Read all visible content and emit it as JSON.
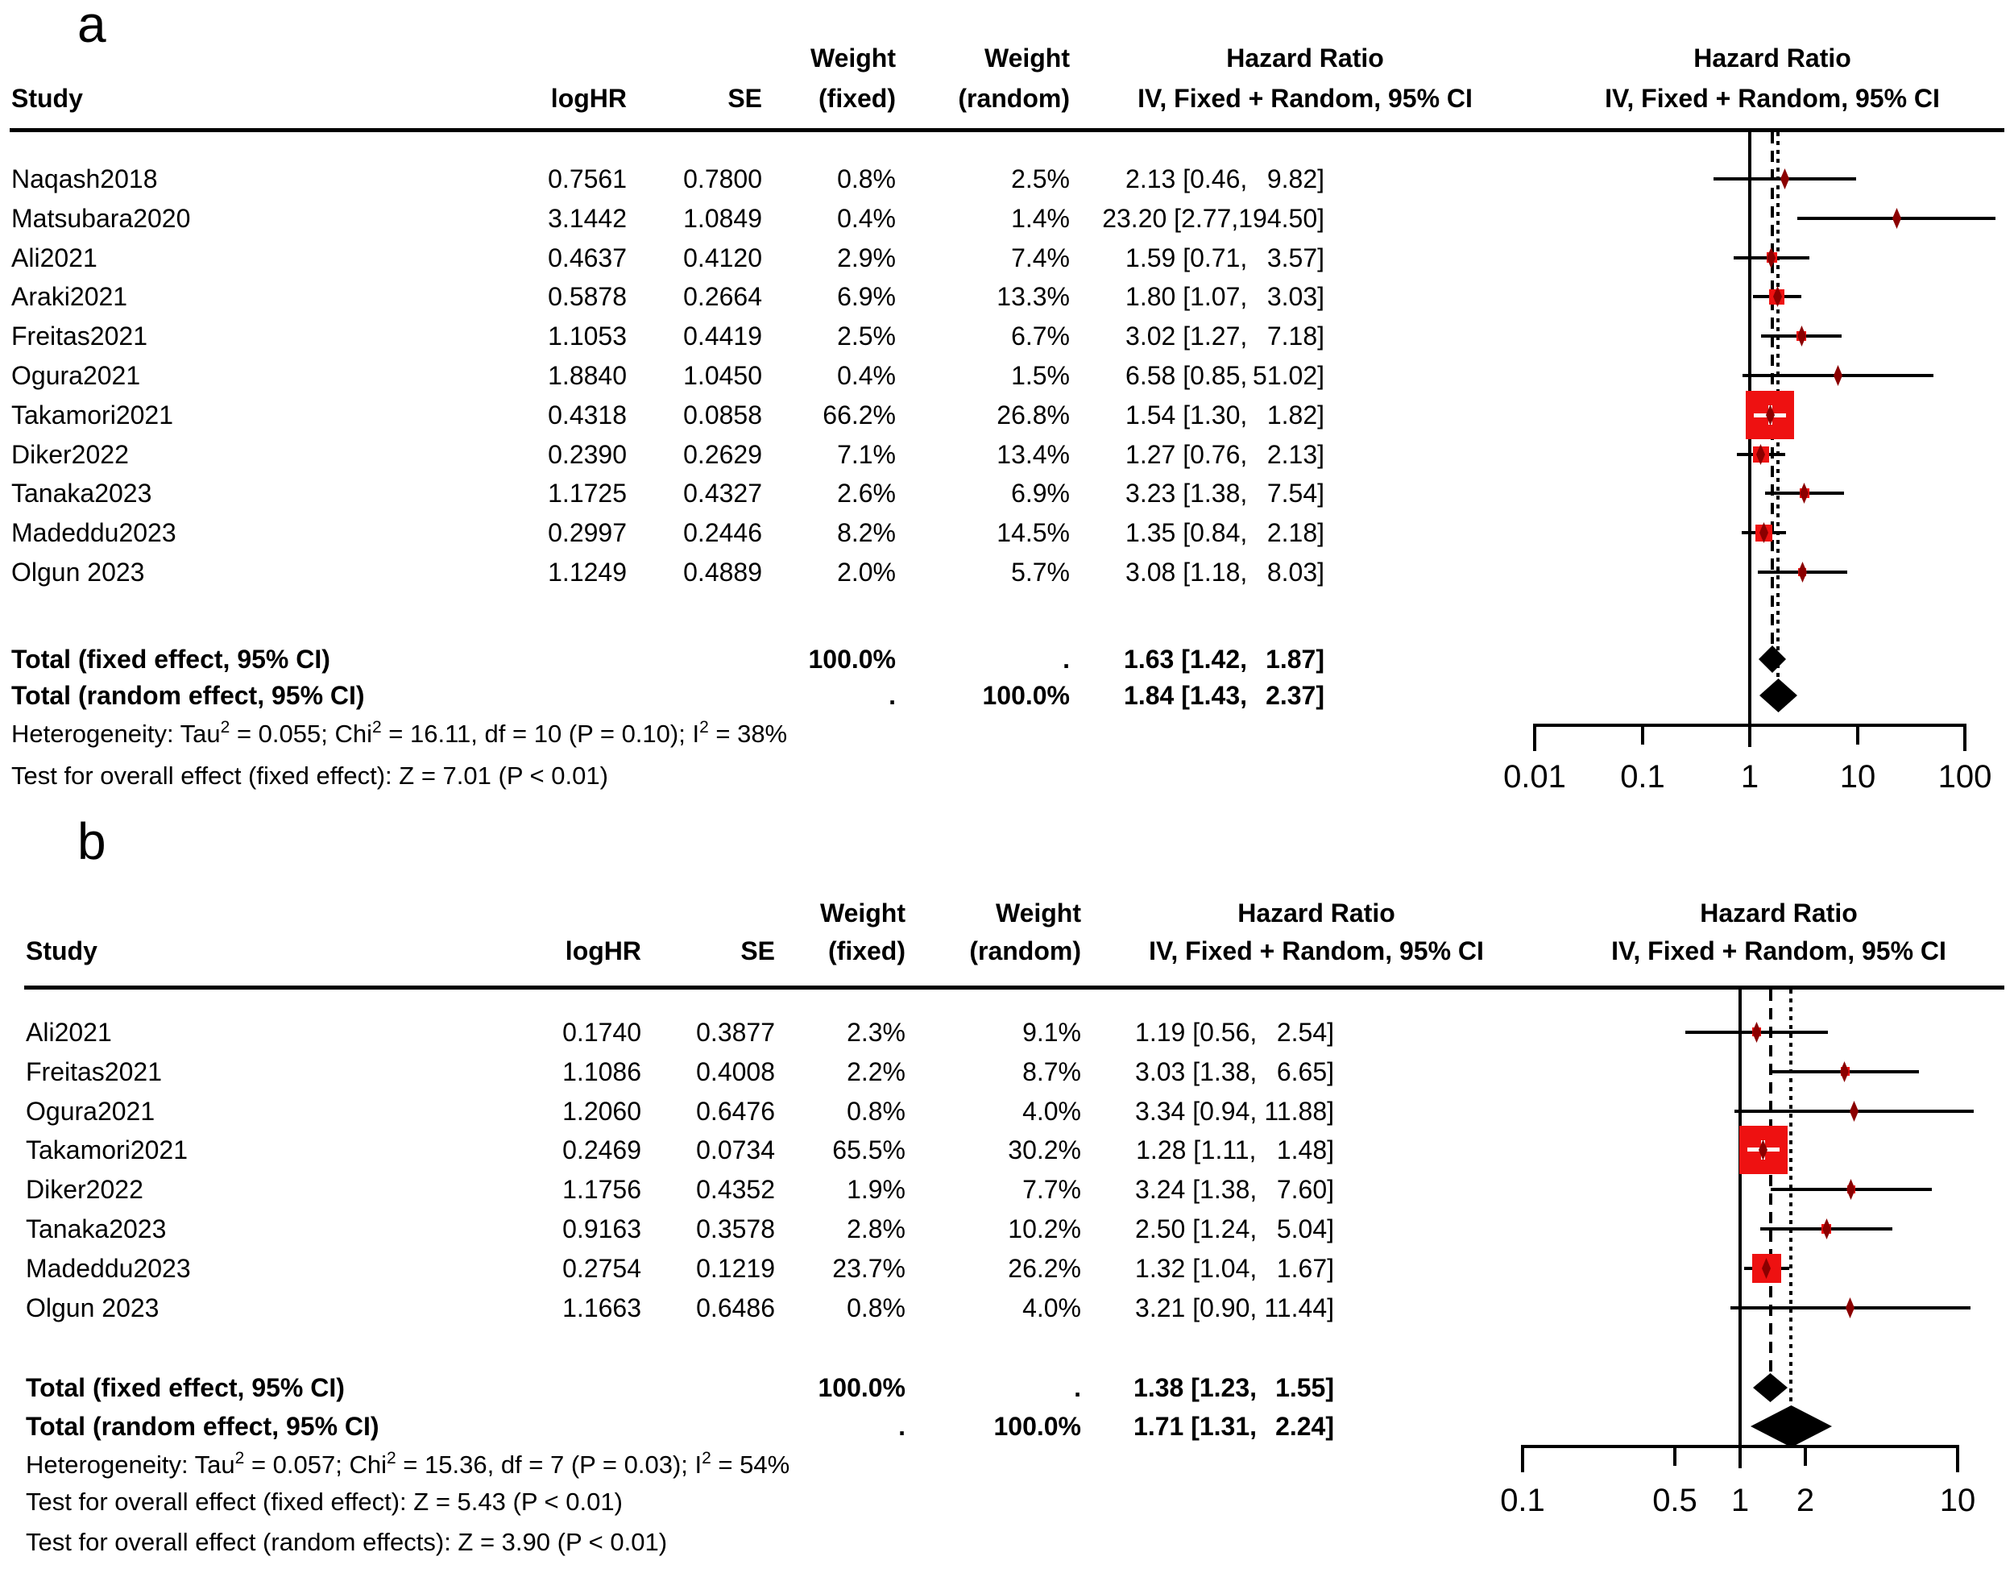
{
  "colors": {
    "background": "#ffffff",
    "text": "#000000",
    "line": "#000000",
    "weight_square": "#ee1111",
    "point_marker": "#8b0000",
    "pooled_diamond": "#000000"
  },
  "chart_data": [
    {
      "type": "forest",
      "panel_label": "a",
      "columns": {
        "study": "Study",
        "logHR": "logHR",
        "SE": "SE",
        "weight_fixed_top": "Weight",
        "weight_fixed_bottom": "(fixed)",
        "weight_random_top": "Weight",
        "weight_random_bottom": "(random)",
        "hr_text_top": "Hazard Ratio",
        "hr_text_bottom": "IV, Fixed + Random, 95% CI",
        "hr_plot_top": "Hazard Ratio",
        "hr_plot_bottom": "IV, Fixed + Random, 95% CI"
      },
      "studies": [
        {
          "study": "Naqash2018",
          "logHR": "0.7561",
          "SE": "0.7800",
          "weight_fixed": "0.8%",
          "weight_random": "2.5%",
          "weight_fixed_value": 0.8,
          "est": 2.13,
          "lo": 0.46,
          "hi": 9.82,
          "est_text": "2.13",
          "lo_text": "0.46",
          "hi_text": "9.82"
        },
        {
          "study": "Matsubara2020",
          "logHR": "3.1442",
          "SE": "1.0849",
          "weight_fixed": "0.4%",
          "weight_random": "1.4%",
          "weight_fixed_value": 0.4,
          "est": 23.2,
          "lo": 2.77,
          "hi": 194.5,
          "est_text": "23.20",
          "lo_text": "2.77",
          "hi_text": "194.50"
        },
        {
          "study": "Ali2021",
          "logHR": "0.4637",
          "SE": "0.4120",
          "weight_fixed": "2.9%",
          "weight_random": "7.4%",
          "weight_fixed_value": 2.9,
          "est": 1.59,
          "lo": 0.71,
          "hi": 3.57,
          "est_text": "1.59",
          "lo_text": "0.71",
          "hi_text": "3.57"
        },
        {
          "study": "Araki2021",
          "logHR": "0.5878",
          "SE": "0.2664",
          "weight_fixed": "6.9%",
          "weight_random": "13.3%",
          "weight_fixed_value": 6.9,
          "est": 1.8,
          "lo": 1.07,
          "hi": 3.03,
          "est_text": "1.80",
          "lo_text": "1.07",
          "hi_text": "3.03"
        },
        {
          "study": "Freitas2021",
          "logHR": "1.1053",
          "SE": "0.4419",
          "weight_fixed": "2.5%",
          "weight_random": "6.7%",
          "weight_fixed_value": 2.5,
          "est": 3.02,
          "lo": 1.27,
          "hi": 7.18,
          "est_text": "3.02",
          "lo_text": "1.27",
          "hi_text": "7.18"
        },
        {
          "study": "Ogura2021",
          "logHR": "1.8840",
          "SE": "1.0450",
          "weight_fixed": "0.4%",
          "weight_random": "1.5%",
          "weight_fixed_value": 0.4,
          "est": 6.58,
          "lo": 0.85,
          "hi": 51.02,
          "est_text": "6.58",
          "lo_text": "0.85",
          "hi_text": "51.02"
        },
        {
          "study": "Takamori2021",
          "logHR": "0.4318",
          "SE": "0.0858",
          "weight_fixed": "66.2%",
          "weight_random": "26.8%",
          "weight_fixed_value": 66.2,
          "est": 1.54,
          "lo": 1.3,
          "hi": 1.82,
          "est_text": "1.54",
          "lo_text": "1.30",
          "hi_text": "1.82"
        },
        {
          "study": "Diker2022",
          "logHR": "0.2390",
          "SE": "0.2629",
          "weight_fixed": "7.1%",
          "weight_random": "13.4%",
          "weight_fixed_value": 7.1,
          "est": 1.27,
          "lo": 0.76,
          "hi": 2.13,
          "est_text": "1.27",
          "lo_text": "0.76",
          "hi_text": "2.13"
        },
        {
          "study": "Tanaka2023",
          "logHR": "1.1725",
          "SE": "0.4327",
          "weight_fixed": "2.6%",
          "weight_random": "6.9%",
          "weight_fixed_value": 2.6,
          "est": 3.23,
          "lo": 1.38,
          "hi": 7.54,
          "est_text": "3.23",
          "lo_text": "1.38",
          "hi_text": "7.54"
        },
        {
          "study": "Madeddu2023",
          "logHR": "0.2997",
          "SE": "0.2446",
          "weight_fixed": "8.2%",
          "weight_random": "14.5%",
          "weight_fixed_value": 8.2,
          "est": 1.35,
          "lo": 0.84,
          "hi": 2.18,
          "est_text": "1.35",
          "lo_text": "0.84",
          "hi_text": "2.18"
        },
        {
          "study": "Olgun 2023",
          "logHR": "1.1249",
          "SE": "0.4889",
          "weight_fixed": "2.0%",
          "weight_random": "5.7%",
          "weight_fixed_value": 2.0,
          "est": 3.08,
          "lo": 1.18,
          "hi": 8.03,
          "est_text": "3.08",
          "lo_text": "1.18",
          "hi_text": "8.03"
        }
      ],
      "totals": [
        {
          "label": "Total (fixed effect, 95% CI)",
          "weight_fixed": "100.0%",
          "weight_random": ".",
          "est": 1.63,
          "lo": 1.42,
          "hi": 1.87,
          "est_text": "1.63",
          "lo_text": "1.42",
          "hi_text": "1.87"
        },
        {
          "label": "Total (random effect, 95% CI)",
          "weight_fixed": ".",
          "weight_random": "100.0%",
          "est": 1.84,
          "lo": 1.43,
          "hi": 2.37,
          "est_text": "1.84",
          "lo_text": "1.43",
          "hi_text": "2.37"
        }
      ],
      "heterogeneity": [
        {
          "t": "Heterogeneity: Tau"
        },
        {
          "sup": "2"
        },
        {
          "t": " = 0.055; Chi"
        },
        {
          "sup": "2"
        },
        {
          "t": " = 16.11, df = 10 (P = 0.10); I"
        },
        {
          "sup": "2"
        },
        {
          "t": " = 38%"
        }
      ],
      "tests": [
        "Test for overall effect (fixed effect): Z = 7.01 (P < 0.01)"
      ],
      "axis": {
        "scale": "log",
        "ref_line": 1,
        "ticks": [
          0.01,
          0.1,
          1,
          10,
          100
        ],
        "tick_labels": [
          "0.01",
          "0.1",
          "1",
          "10",
          "100"
        ]
      }
    },
    {
      "type": "forest",
      "panel_label": "b",
      "columns": {
        "study": "Study",
        "logHR": "logHR",
        "SE": "SE",
        "weight_fixed_top": "Weight",
        "weight_fixed_bottom": "(fixed)",
        "weight_random_top": "Weight",
        "weight_random_bottom": "(random)",
        "hr_text_top": "Hazard Ratio",
        "hr_text_bottom": "IV, Fixed + Random, 95% CI",
        "hr_plot_top": "Hazard Ratio",
        "hr_plot_bottom": "IV, Fixed + Random, 95% CI"
      },
      "studies": [
        {
          "study": "Ali2021",
          "logHR": "0.1740",
          "SE": "0.3877",
          "weight_fixed": "2.3%",
          "weight_random": "9.1%",
          "weight_fixed_value": 2.3,
          "est": 1.19,
          "lo": 0.56,
          "hi": 2.54,
          "est_text": "1.19",
          "lo_text": "0.56",
          "hi_text": "2.54"
        },
        {
          "study": "Freitas2021",
          "logHR": "1.1086",
          "SE": "0.4008",
          "weight_fixed": "2.2%",
          "weight_random": "8.7%",
          "weight_fixed_value": 2.2,
          "est": 3.03,
          "lo": 1.38,
          "hi": 6.65,
          "est_text": "3.03",
          "lo_text": "1.38",
          "hi_text": "6.65"
        },
        {
          "study": "Ogura2021",
          "logHR": "1.2060",
          "SE": "0.6476",
          "weight_fixed": "0.8%",
          "weight_random": "4.0%",
          "weight_fixed_value": 0.8,
          "est": 3.34,
          "lo": 0.94,
          "hi": 11.88,
          "est_text": "3.34",
          "lo_text": "0.94",
          "hi_text": "11.88"
        },
        {
          "study": "Takamori2021",
          "logHR": "0.2469",
          "SE": "0.0734",
          "weight_fixed": "65.5%",
          "weight_random": "30.2%",
          "weight_fixed_value": 65.5,
          "est": 1.28,
          "lo": 1.11,
          "hi": 1.48,
          "est_text": "1.28",
          "lo_text": "1.11",
          "hi_text": "1.48"
        },
        {
          "study": "Diker2022",
          "logHR": "1.1756",
          "SE": "0.4352",
          "weight_fixed": "1.9%",
          "weight_random": "7.7%",
          "weight_fixed_value": 1.9,
          "est": 3.24,
          "lo": 1.38,
          "hi": 7.6,
          "est_text": "3.24",
          "lo_text": "1.38",
          "hi_text": "7.60"
        },
        {
          "study": "Tanaka2023",
          "logHR": "0.9163",
          "SE": "0.3578",
          "weight_fixed": "2.8%",
          "weight_random": "10.2%",
          "weight_fixed_value": 2.8,
          "est": 2.5,
          "lo": 1.24,
          "hi": 5.04,
          "est_text": "2.50",
          "lo_text": "1.24",
          "hi_text": "5.04"
        },
        {
          "study": "Madeddu2023",
          "logHR": "0.2754",
          "SE": "0.1219",
          "weight_fixed": "23.7%",
          "weight_random": "26.2%",
          "weight_fixed_value": 23.7,
          "est": 1.32,
          "lo": 1.04,
          "hi": 1.67,
          "est_text": "1.32",
          "lo_text": "1.04",
          "hi_text": "1.67"
        },
        {
          "study": "Olgun 2023",
          "logHR": "1.1663",
          "SE": "0.6486",
          "weight_fixed": "0.8%",
          "weight_random": "4.0%",
          "weight_fixed_value": 0.8,
          "est": 3.21,
          "lo": 0.9,
          "hi": 11.44,
          "est_text": "3.21",
          "lo_text": "0.90",
          "hi_text": "11.44"
        }
      ],
      "totals": [
        {
          "label": "Total (fixed effect, 95% CI)",
          "weight_fixed": "100.0%",
          "weight_random": ".",
          "est": 1.38,
          "lo": 1.23,
          "hi": 1.55,
          "est_text": "1.38",
          "lo_text": "1.23",
          "hi_text": "1.55"
        },
        {
          "label": "Total (random effect, 95% CI)",
          "weight_fixed": ".",
          "weight_random": "100.0%",
          "est": 1.71,
          "lo": 1.31,
          "hi": 2.24,
          "est_text": "1.71",
          "lo_text": "1.31",
          "hi_text": "2.24"
        }
      ],
      "heterogeneity": [
        {
          "t": "Heterogeneity: Tau"
        },
        {
          "sup": "2"
        },
        {
          "t": " = 0.057; Chi"
        },
        {
          "sup": "2"
        },
        {
          "t": " = 15.36, df = 7 (P = 0.03); I"
        },
        {
          "sup": "2"
        },
        {
          "t": " = 54%"
        }
      ],
      "tests": [
        "Test for overall effect (fixed effect): Z = 5.43 (P < 0.01)",
        "Test for overall effect (random effects): Z = 3.90 (P < 0.01)"
      ],
      "axis": {
        "scale": "log",
        "ref_line": 1,
        "ticks": [
          0.1,
          0.5,
          1,
          2,
          10
        ],
        "tick_labels": [
          "0.1",
          "0.5",
          "1",
          "2",
          "10"
        ]
      }
    }
  ]
}
